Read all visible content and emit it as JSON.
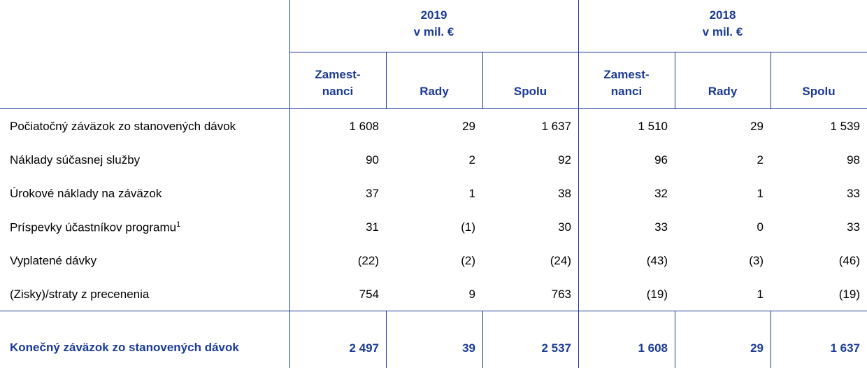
{
  "header": {
    "groups": [
      {
        "year": "2019",
        "unit": "v mil. €"
      },
      {
        "year": "2018",
        "unit": "v mil. €"
      }
    ],
    "columns": [
      [
        "Zamest-",
        "nanci"
      ],
      [
        "Rady"
      ],
      [
        "Spolu"
      ],
      [
        "Zamest-",
        "nanci"
      ],
      [
        "Rady"
      ],
      [
        "Spolu"
      ]
    ]
  },
  "table": {
    "rows": [
      {
        "label": "Počiatočný záväzok zo stanovených dávok",
        "cells": [
          "1 608",
          "29",
          "1 637",
          "1 510",
          "29",
          "1 539"
        ]
      },
      {
        "label": "Náklady súčasnej služby",
        "cells": [
          "90",
          "2",
          "92",
          "96",
          "2",
          "98"
        ]
      },
      {
        "label": "Úrokové náklady na záväzok",
        "cells": [
          "37",
          "1",
          "38",
          "32",
          "1",
          "33"
        ]
      },
      {
        "label": "Príspevky účastníkov programu",
        "note": "1",
        "cells": [
          "31",
          "(1)",
          "30",
          "33",
          "0",
          "33"
        ]
      },
      {
        "label": "Vyplatené dávky",
        "cells": [
          "(22)",
          "(2)",
          "(24)",
          "(43)",
          "(3)",
          "(46)"
        ]
      },
      {
        "label": "(Zisky)/straty z precenenia",
        "cells": [
          "754",
          "9",
          "763",
          "(19)",
          "1",
          "(19)"
        ]
      }
    ],
    "total": {
      "label": "Konečný záväzok zo stanovených dávok",
      "cells": [
        "2 497",
        "39",
        "2 537",
        "1 608",
        "29",
        "1 637"
      ]
    }
  }
}
